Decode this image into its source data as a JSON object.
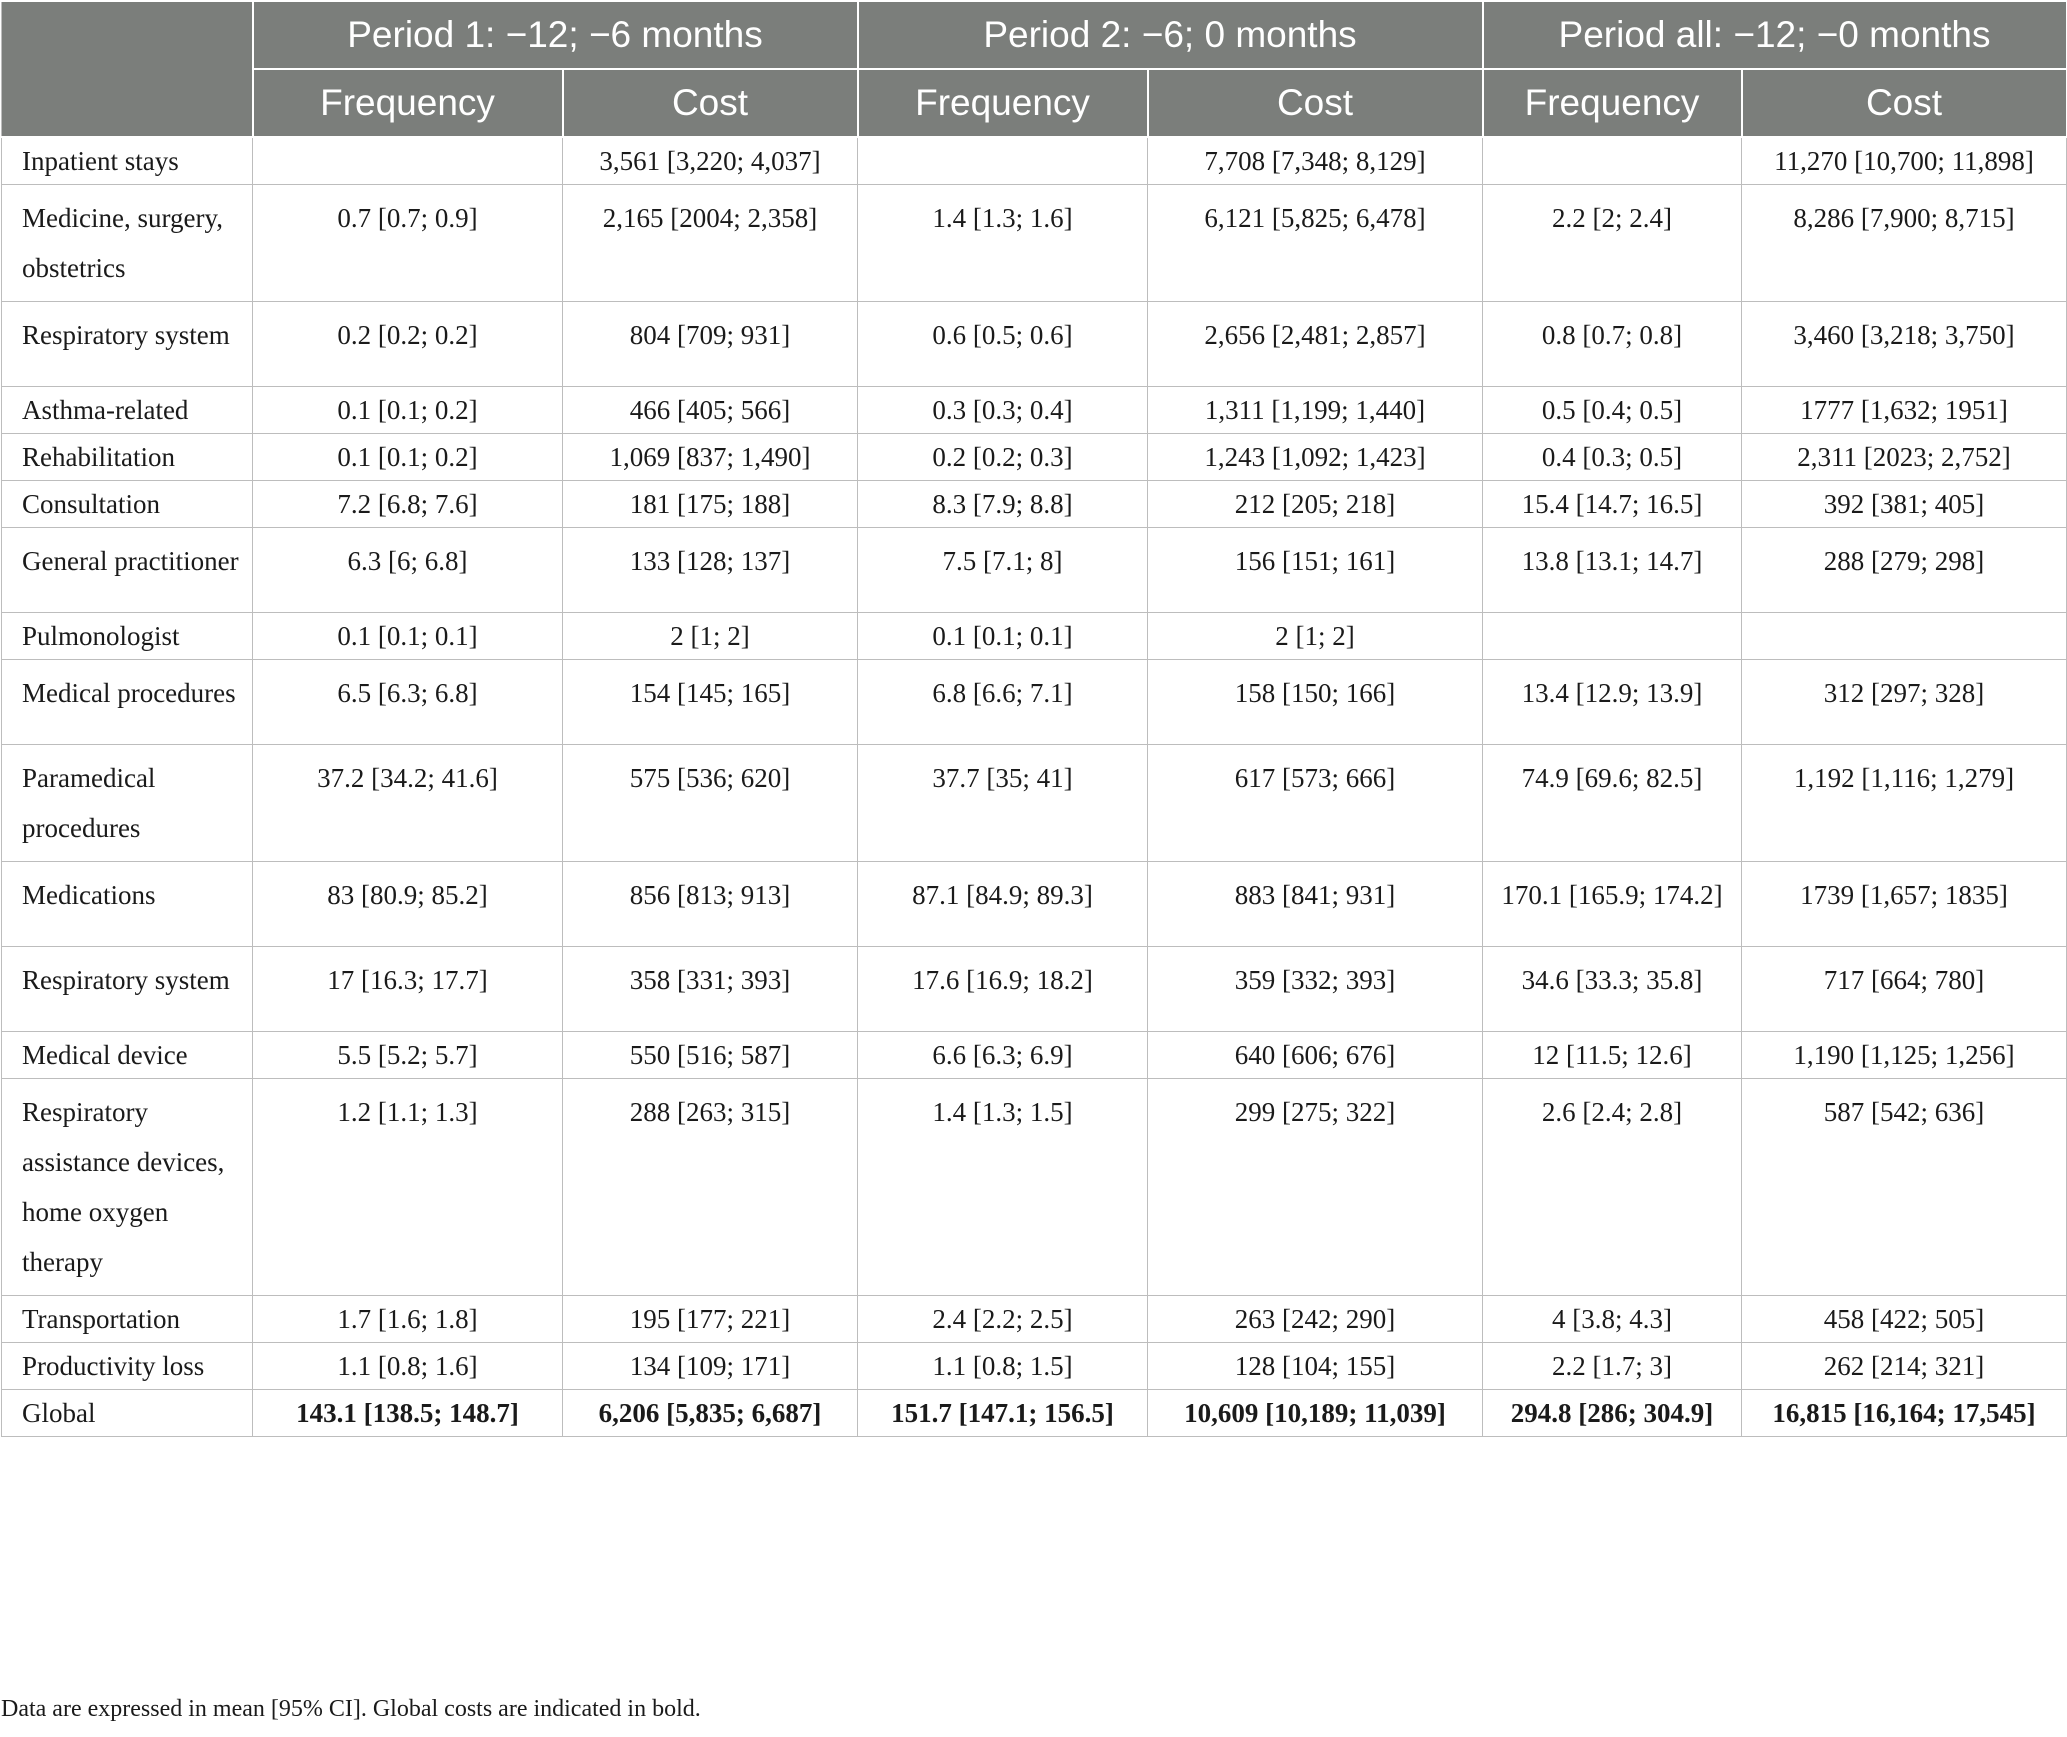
{
  "header": {
    "period1": "Period 1: −12; −6 months",
    "period2": "Period 2: −6; 0 months",
    "period_all": "Period all: −12; −0 months",
    "frequency": "Frequency",
    "cost": "Cost"
  },
  "rows": [
    {
      "label": "Inpatient stays",
      "cells": [
        "",
        "3,561 [3,220; 4,037]",
        "",
        "7,708 [7,348; 8,129]",
        "",
        "11,270 [10,700; 11,898]"
      ]
    },
    {
      "label": "Medicine, surgery, obstetrics",
      "cells": [
        "0.7 [0.7; 0.9]",
        "2,165 [2004; 2,358]",
        "1.4 [1.3; 1.6]",
        "6,121 [5,825; 6,478]",
        "2.2 [2; 2.4]",
        "8,286 [7,900; 8,715]"
      ]
    },
    {
      "label": "Respiratory system",
      "cells": [
        "0.2 [0.2; 0.2]",
        "804 [709; 931]",
        "0.6 [0.5; 0.6]",
        "2,656 [2,481; 2,857]",
        "0.8 [0.7; 0.8]",
        "3,460 [3,218; 3,750]"
      ]
    },
    {
      "label": "Asthma-related",
      "cells": [
        "0.1 [0.1; 0.2]",
        "466 [405; 566]",
        "0.3 [0.3; 0.4]",
        "1,311 [1,199; 1,440]",
        "0.5 [0.4; 0.5]",
        "1777 [1,632; 1951]"
      ]
    },
    {
      "label": "Rehabilitation",
      "cells": [
        "0.1 [0.1; 0.2]",
        "1,069 [837; 1,490]",
        "0.2 [0.2; 0.3]",
        "1,243 [1,092; 1,423]",
        "0.4 [0.3; 0.5]",
        "2,311 [2023; 2,752]"
      ]
    },
    {
      "label": "Consultation",
      "cells": [
        "7.2 [6.8; 7.6]",
        "181 [175; 188]",
        "8.3 [7.9; 8.8]",
        "212 [205; 218]",
        "15.4 [14.7; 16.5]",
        "392 [381; 405]"
      ]
    },
    {
      "label": "General practitioner",
      "cells": [
        "6.3 [6; 6.8]",
        "133 [128; 137]",
        "7.5 [7.1; 8]",
        "156 [151; 161]",
        "13.8 [13.1; 14.7]",
        "288 [279; 298]"
      ]
    },
    {
      "label": "Pulmonologist",
      "cells": [
        "0.1 [0.1; 0.1]",
        "2 [1; 2]",
        "0.1 [0.1; 0.1]",
        "2 [1; 2]",
        "",
        ""
      ]
    },
    {
      "label": "Medical procedures",
      "cells": [
        "6.5 [6.3; 6.8]",
        "154 [145; 165]",
        "6.8 [6.6; 7.1]",
        "158 [150; 166]",
        "13.4 [12.9; 13.9]",
        "312 [297; 328]"
      ]
    },
    {
      "label": "Paramedical procedures",
      "cells": [
        "37.2 [34.2; 41.6]",
        "575 [536; 620]",
        "37.7 [35; 41]",
        "617 [573; 666]",
        "74.9 [69.6; 82.5]",
        "1,192 [1,116; 1,279]"
      ]
    },
    {
      "label": "Medications",
      "cells": [
        "83 [80.9; 85.2]",
        "856 [813; 913]",
        "87.1 [84.9; 89.3]",
        "883 [841; 931]",
        "170.1 [165.9; 174.2]",
        "1739 [1,657; 1835]"
      ]
    },
    {
      "label": "Respiratory system",
      "cells": [
        "17 [16.3; 17.7]",
        "358 [331; 393]",
        "17.6 [16.9; 18.2]",
        "359 [332; 393]",
        "34.6 [33.3; 35.8]",
        "717 [664; 780]"
      ]
    },
    {
      "label": "Medical device",
      "cells": [
        "5.5 [5.2; 5.7]",
        "550 [516; 587]",
        "6.6 [6.3; 6.9]",
        "640 [606; 676]",
        "12 [11.5; 12.6]",
        "1,190 [1,125; 1,256]"
      ]
    },
    {
      "label": "Respiratory assistance devices, home oxygen therapy",
      "cells": [
        "1.2 [1.1; 1.3]",
        "288 [263; 315]",
        "1.4 [1.3; 1.5]",
        "299 [275; 322]",
        "2.6 [2.4; 2.8]",
        "587 [542; 636]"
      ]
    },
    {
      "label": "Transportation",
      "cells": [
        "1.7 [1.6; 1.8]",
        "195 [177; 221]",
        "2.4 [2.2; 2.5]",
        "263 [242; 290]",
        "4 [3.8; 4.3]",
        "458 [422; 505]"
      ]
    },
    {
      "label": "Productivity loss",
      "cells": [
        "1.1 [0.8; 1.6]",
        "134 [109; 171]",
        "1.1 [0.8; 1.5]",
        "128 [104; 155]",
        "2.2 [1.7; 3]",
        "262 [214; 321]"
      ]
    },
    {
      "label": "Global",
      "cells": [
        "143.1 [138.5; 148.7]",
        "6,206 [5,835; 6,687]",
        "151.7 [147.1; 156.5]",
        "10,609 [10,189; 11,039]",
        "294.8 [286; 304.9]",
        "16,815 [16,164; 17,545]"
      ]
    }
  ],
  "footnote": "Data are expressed in mean [95% CI]. Global costs are indicated in bold."
}
